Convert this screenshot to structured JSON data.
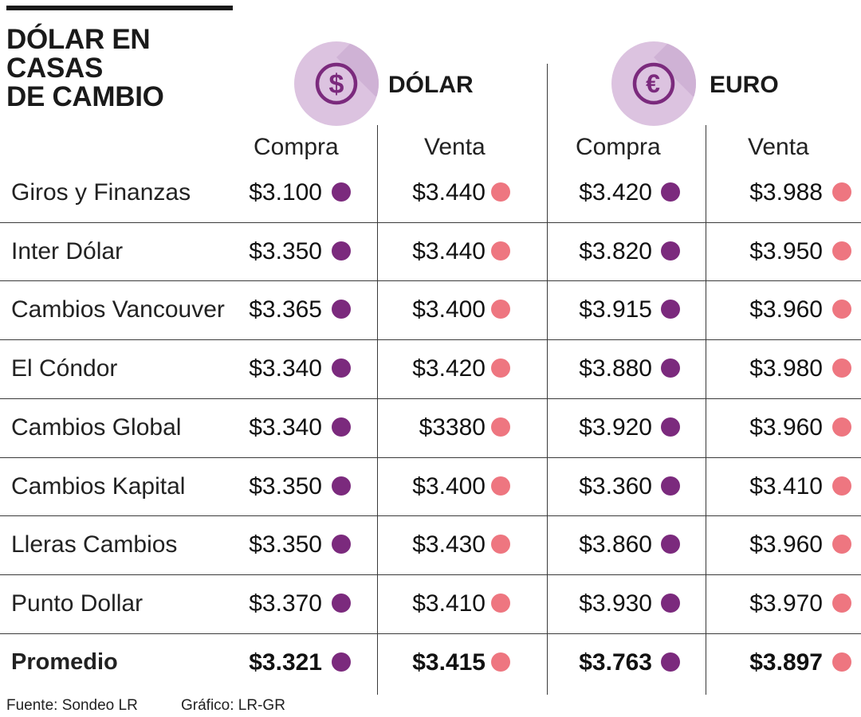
{
  "title": {
    "line1": "DÓLAR EN CASAS",
    "line2": "DE CAMBIO"
  },
  "currencies": [
    {
      "label": "DÓLAR",
      "icon": "dollar-coin-icon"
    },
    {
      "label": "EURO",
      "icon": "euro-coin-icon"
    }
  ],
  "columns": [
    "Compra",
    "Venta",
    "Compra",
    "Venta"
  ],
  "colors": {
    "compra": "#7b2a7d",
    "venta": "#ee7680",
    "circle": "#dcc3e0",
    "circle_shadow": "#cfb2d5",
    "icon": "#7b2a7d"
  },
  "chart_data": {
    "type": "table",
    "title": "DÓLAR EN CASAS DE CAMBIO",
    "columns": [
      "Dólar Compra",
      "Dólar Venta",
      "Euro Compra",
      "Euro Venta"
    ],
    "rows": [
      {
        "name": "Giros y Finanzas",
        "values": [
          "$3.100",
          "$3.440",
          "$3.420",
          "$3.988"
        ]
      },
      {
        "name": "Inter Dólar",
        "values": [
          "$3.350",
          "$3.440",
          "$3.820",
          "$3.950"
        ]
      },
      {
        "name": "Cambios Vancouver",
        "values": [
          "$3.365",
          "$3.400",
          "$3.915",
          "$3.960"
        ]
      },
      {
        "name": "El Cóndor",
        "values": [
          "$3.340",
          "$3.420",
          "$3.880",
          "$3.980"
        ]
      },
      {
        "name": "Cambios Global",
        "values": [
          "$3.340",
          "$3380",
          "$3.920",
          "$3.960"
        ]
      },
      {
        "name": "Cambios Kapital",
        "values": [
          "$3.350",
          "$3.400",
          "$3.360",
          "$3.410"
        ]
      },
      {
        "name": "Lleras Cambios",
        "values": [
          "$3.350",
          "$3.430",
          "$3.860",
          "$3.960"
        ]
      },
      {
        "name": "Punto Dollar",
        "values": [
          "$3.370",
          "$3.410",
          "$3.930",
          "$3.970"
        ]
      }
    ],
    "average": {
      "name": "Promedio",
      "values": [
        "$3.321",
        "$3.415",
        "$3.763",
        "$3.897"
      ]
    }
  },
  "footer": {
    "source": "Fuente: Sondeo LR",
    "graphic": "Gráfico: LR-GR"
  }
}
